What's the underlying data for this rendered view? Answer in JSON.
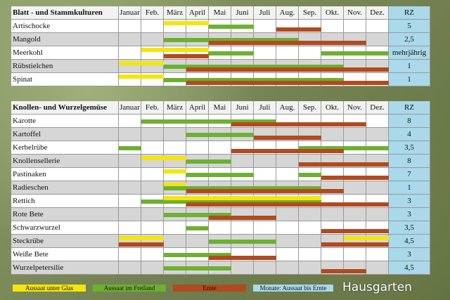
{
  "months": [
    "Januar",
    "Feb.",
    "März",
    "April",
    "Mai",
    "Juni",
    "Juli",
    "Aug.",
    "Sep.",
    "Okt.",
    "Nov.",
    "Dez."
  ],
  "colors": {
    "glas": "#f5e50f",
    "freiland": "#6cb12f",
    "ernte": "#b24a1f",
    "rz": "#a9d9ea"
  },
  "sections": [
    {
      "title": "Blatt - und Stammkulturen",
      "rz_header": "RZ",
      "rows": [
        {
          "name": "Artischocke",
          "rz": "5",
          "bars": [
            {
              "type": "glas",
              "s": 2,
              "e": 4
            },
            {
              "type": "freiland",
              "s": 4,
              "e": 6
            },
            {
              "type": "ernte",
              "s": 7,
              "e": 9
            }
          ]
        },
        {
          "name": "Mangold",
          "rz": "2,5",
          "bars": [
            {
              "type": "freiland",
              "s": 2,
              "e": 8
            },
            {
              "type": "ernte",
              "s": 4,
              "e": 11
            }
          ]
        },
        {
          "name": "Meerkohl",
          "rz": "mehrjährig",
          "bars": [
            {
              "type": "glas",
              "s": 1,
              "e": 4
            },
            {
              "type": "freiland",
              "s": 4,
              "e": 6
            },
            {
              "type": "freiland",
              "s": 9,
              "e": 12
            },
            {
              "type": "ernte",
              "s": 2,
              "e": 4
            }
          ]
        },
        {
          "name": "Rübstielchen",
          "rz": "1",
          "bars": [
            {
              "type": "glas",
              "s": 0,
              "e": 2
            },
            {
              "type": "freiland",
              "s": 2,
              "e": 10
            },
            {
              "type": "ernte",
              "s": 3,
              "e": 12
            }
          ]
        },
        {
          "name": "Spinat",
          "rz": "1",
          "bars": [
            {
              "type": "glas",
              "s": 0,
              "e": 2
            },
            {
              "type": "freiland",
              "s": 2,
              "e": 10
            },
            {
              "type": "ernte",
              "s": 3,
              "e": 12
            }
          ]
        }
      ]
    },
    {
      "title": "Knollen- und Wurzelgemüse",
      "rz_header": "RZ",
      "rows": [
        {
          "name": "Karotte",
          "rz": "8",
          "bars": [
            {
              "type": "freiland",
              "s": 1,
              "e": 7
            },
            {
              "type": "ernte",
              "s": 5,
              "e": 11
            }
          ]
        },
        {
          "name": "Kartoffel",
          "rz": "4",
          "bars": [
            {
              "type": "freiland",
              "s": 3,
              "e": 6
            },
            {
              "type": "ernte",
              "s": 6,
              "e": 9
            }
          ]
        },
        {
          "name": "Kerbelrübe",
          "rz": "3,5",
          "bars": [
            {
              "type": "freiland",
              "s": 0,
              "e": 1
            },
            {
              "type": "freiland",
              "s": 8,
              "e": 12
            },
            {
              "type": "ernte",
              "s": 5,
              "e": 10
            }
          ]
        },
        {
          "name": "Knollensellerie",
          "rz": "8",
          "bars": [
            {
              "type": "glas",
              "s": 1,
              "e": 3
            },
            {
              "type": "freiland",
              "s": 3,
              "e": 5
            },
            {
              "type": "ernte",
              "s": 8,
              "e": 12
            }
          ]
        },
        {
          "name": "Pastinaken",
          "rz": "7",
          "bars": [
            {
              "type": "glas",
              "s": 2,
              "e": 3
            },
            {
              "type": "freiland",
              "s": 3,
              "e": 6
            },
            {
              "type": "freiland",
              "s": 8,
              "e": 9
            },
            {
              "type": "ernte",
              "s": 9,
              "e": 12
            }
          ]
        },
        {
          "name": "Radieschen",
          "rz": "1",
          "bars": [
            {
              "type": "glas",
              "s": 2,
              "e": 3
            },
            {
              "type": "freiland",
              "s": 2,
              "e": 9
            },
            {
              "type": "ernte",
              "s": 3,
              "e": 10
            }
          ]
        },
        {
          "name": "Rettich",
          "rz": "3",
          "bars": [
            {
              "type": "freiland",
              "s": 1,
              "e": 9
            },
            {
              "type": "glas",
              "s": 2,
              "e": 9
            },
            {
              "type": "ernte",
              "s": 3,
              "e": 12
            }
          ]
        },
        {
          "name": "Rote Bete",
          "rz": "3",
          "bars": [
            {
              "type": "freiland",
              "s": 2,
              "e": 5
            },
            {
              "type": "ernte",
              "s": 4,
              "e": 7
            }
          ]
        },
        {
          "name": "Schwarzwurzel",
          "rz": "3,5",
          "bars": [
            {
              "type": "freiland",
              "s": 3,
              "e": 4
            },
            {
              "type": "ernte",
              "s": 9,
              "e": 12
            }
          ]
        },
        {
          "name": "Steckrübe",
          "rz": "4,5",
          "bars": [
            {
              "type": "ernte",
              "s": 0,
              "e": 2
            },
            {
              "type": "glas",
              "s": 0,
              "e": 2
            },
            {
              "type": "freiland",
              "s": 4,
              "e": 7
            },
            {
              "type": "ernte",
              "s": 9,
              "e": 12
            },
            {
              "type": "glas",
              "s": 10,
              "e": 12
            }
          ]
        },
        {
          "name": "Weiße Bete",
          "rz": "3",
          "bars": [
            {
              "type": "freiland",
              "s": 2,
              "e": 5
            },
            {
              "type": "ernte",
              "s": 4,
              "e": 7
            }
          ]
        },
        {
          "name": "Wurzelpetersilie",
          "rz": "4,5",
          "bars": [
            {
              "type": "freiland",
              "s": 2,
              "e": 5
            },
            {
              "type": "ernte",
              "s": 9,
              "e": 11
            }
          ]
        }
      ]
    }
  ],
  "legend": [
    {
      "label": "Aussaat unter Glas",
      "type": "glas"
    },
    {
      "label": "Aussaat im Freiland",
      "type": "freiland"
    },
    {
      "label": "Ernte",
      "type": "ernte"
    },
    {
      "label": "Monate: Aussaat bis Ernte",
      "type": "rz"
    }
  ],
  "logo": "Hausgarten"
}
